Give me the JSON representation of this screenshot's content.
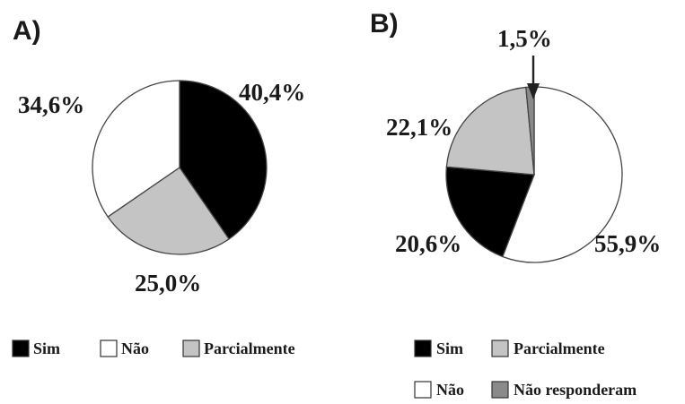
{
  "colors": {
    "Sim": "#000000",
    "Não": "#ffffff",
    "Parcialmente": "#c4c4c4",
    "Não responderam": "#8a8a8a"
  },
  "chart_data": [
    {
      "type": "pie",
      "panel_label": "A)",
      "slices": [
        {
          "label": "Sim",
          "value": 40.4,
          "display": "40,4%"
        },
        {
          "label": "Parcialmente",
          "value": 25.0,
          "display": "25,0%"
        },
        {
          "label": "Não",
          "value": 34.6,
          "display": "34,6%"
        }
      ],
      "legend": [
        "Sim",
        "Não",
        "Parcialmente"
      ],
      "legend_position": "bottom"
    },
    {
      "type": "pie",
      "panel_label": "B)",
      "slices": [
        {
          "label": "Não",
          "value": 55.9,
          "display": "55,9%"
        },
        {
          "label": "Sim",
          "value": 20.6,
          "display": "20,6%"
        },
        {
          "label": "Parcialmente",
          "value": 22.1,
          "display": "22,1%"
        },
        {
          "label": "Não responderam",
          "value": 1.5,
          "display": "1,5%"
        }
      ],
      "legend": [
        "Sim",
        "Parcialmente",
        "Não",
        "Não responderam"
      ],
      "legend_position": "bottom"
    }
  ]
}
